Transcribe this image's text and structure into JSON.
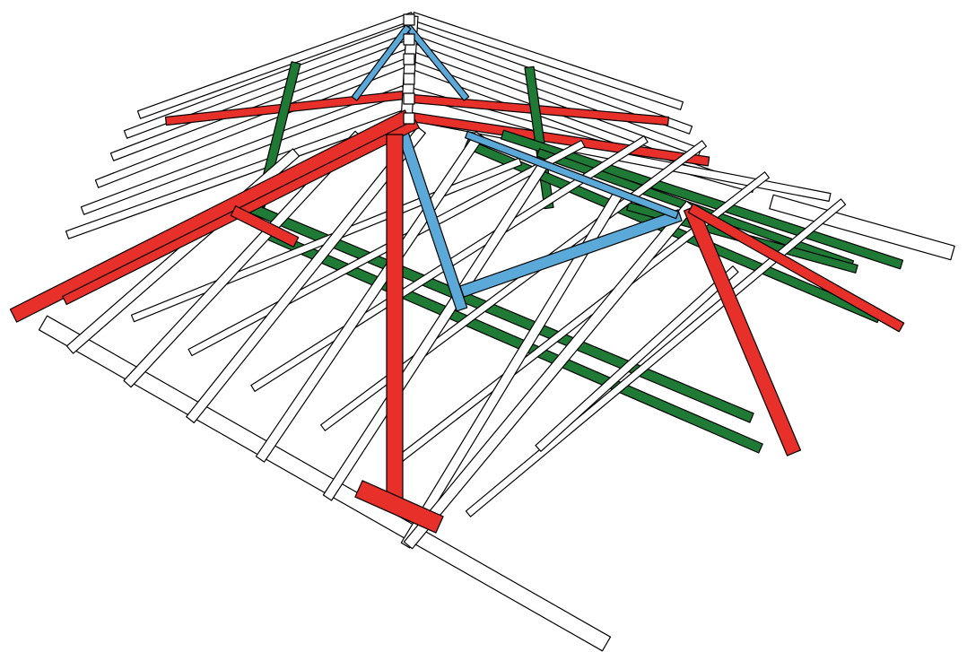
{
  "diagram": {
    "subject": "hip-roof-timber-frame",
    "colors": {
      "background": "#ffffff",
      "outline": "#000000",
      "plain_timber": "#ffffff",
      "hip_rafter": "#e8302a",
      "purlin": "#1f7a35",
      "strut": "#5aa9d8"
    },
    "members": {
      "ridge": 1,
      "common_rafters": 14,
      "hip_rafters": 4,
      "king_post": 1,
      "purlins": 6,
      "struts": 2,
      "wall_plates": 2
    }
  }
}
